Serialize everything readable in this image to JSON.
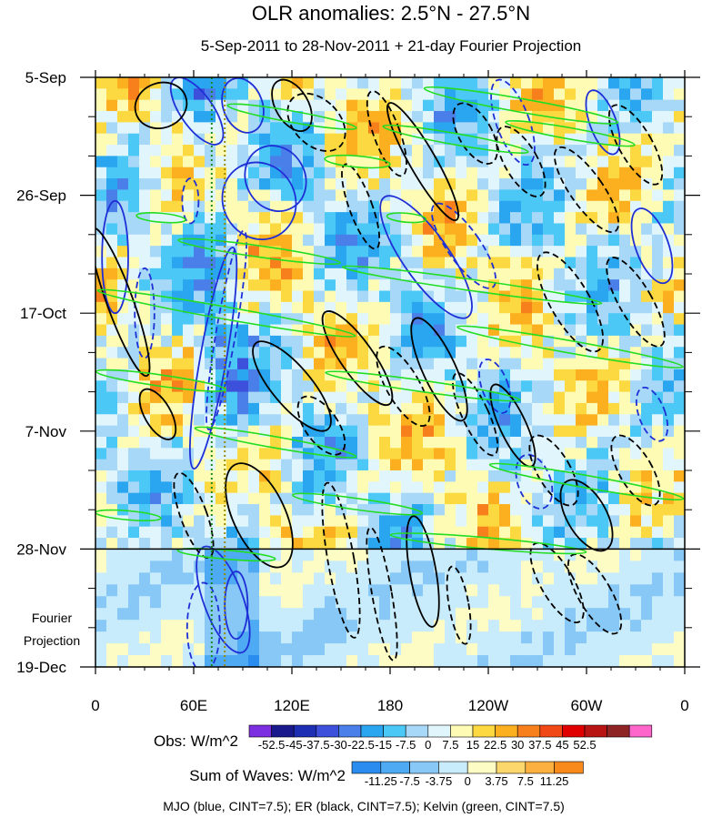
{
  "chart_data": {
    "type": "heatmap",
    "title": "OLR anomalies: 2.5°N - 27.5°N",
    "subtitle": "5-Sep-2011 to 28-Nov-2011 + 21-day Fourier Projection",
    "x_ticks": [
      {
        "lon": 0,
        "label": "0"
      },
      {
        "lon": 60,
        "label": "60E"
      },
      {
        "lon": 120,
        "label": "120E"
      },
      {
        "lon": 180,
        "label": "180"
      },
      {
        "lon": 240,
        "label": "120W"
      },
      {
        "lon": 300,
        "label": "60W"
      },
      {
        "lon": 360,
        "label": "0"
      }
    ],
    "y_ticks": [
      {
        "day": 0,
        "label": "5-Sep"
      },
      {
        "day": 21,
        "label": "26-Sep"
      },
      {
        "day": 42,
        "label": "17-Oct"
      },
      {
        "day": 63,
        "label": "7-Nov"
      },
      {
        "day": 84,
        "label": "28-Nov"
      },
      {
        "day": 105,
        "label": "19-Dec"
      }
    ],
    "xlim": [
      0,
      360
    ],
    "ylim_days": [
      0,
      105
    ],
    "observation_end_day": 84,
    "projection_label": [
      "Fourier",
      "Projection"
    ],
    "dotted_reference_lons": [
      71,
      79
    ],
    "obs_colorbar": {
      "label": "Obs: W/m^2",
      "ticks": [
        "-52.5",
        "-45",
        "-37.5",
        "-30",
        "-22.5",
        "-15",
        "-7.5",
        "0",
        "7.5",
        "15",
        "22.5",
        "30",
        "37.5",
        "45",
        "52.5"
      ],
      "colors": [
        "#7b2fe0",
        "#1a1a8c",
        "#1f2fb4",
        "#3c50dc",
        "#4a7ee8",
        "#2aa6f0",
        "#4cc8f6",
        "#a8d8f8",
        "#e0f6fc",
        "#fdfbb4",
        "#fcd940",
        "#fcb020",
        "#f8801c",
        "#f04816",
        "#e00000",
        "#b81414",
        "#8e2424",
        "#ff66cc"
      ]
    },
    "waves_colorbar": {
      "label": "Sum of Waves: W/m^2",
      "ticks": [
        "-11.25",
        "-7.5",
        "-3.75",
        "0",
        "3.75",
        "7.5",
        "11.25"
      ],
      "colors": [
        "#2b8cf0",
        "#4eaaf2",
        "#88c8f6",
        "#c8ecfc",
        "#fcfcc4",
        "#fcd86c",
        "#fcb040",
        "#f88a1c"
      ]
    },
    "footer": "MJO (blue, CINT=7.5); ER (black, CINT=7.5); Kelvin (green, CINT=7.5)",
    "series": [
      {
        "name": "MJO",
        "color": "blue",
        "cint": 7.5
      },
      {
        "name": "ER",
        "color": "black",
        "cint": 7.5
      },
      {
        "name": "Kelvin",
        "color": "green",
        "cint": 7.5
      }
    ],
    "mjo_contours": [
      {
        "lon": 62,
        "day": 6,
        "rlon": 10,
        "rday": 7,
        "ang": -35,
        "dash": false
      },
      {
        "lon": 58,
        "day": 22,
        "rlon": 5,
        "rday": 4,
        "ang": 0,
        "dash": true
      },
      {
        "lon": 100,
        "day": 22,
        "rlon": 22,
        "rday": 7,
        "ang": -30,
        "dash": false
      },
      {
        "lon": 110,
        "day": 18,
        "rlon": 18,
        "rday": 6,
        "ang": -30,
        "dash": false
      },
      {
        "lon": 90,
        "day": 5,
        "rlon": 12,
        "rday": 5,
        "ang": -20,
        "dash": false
      },
      {
        "lon": 12,
        "day": 32,
        "rlon": 8,
        "rday": 10,
        "ang": 0,
        "dash": false
      },
      {
        "lon": 30,
        "day": 42,
        "rlon": 6,
        "rday": 8,
        "ang": 0,
        "dash": true
      },
      {
        "lon": 72,
        "day": 50,
        "rlon": 8,
        "rday": 20,
        "ang": 10,
        "dash": false
      },
      {
        "lon": 80,
        "day": 45,
        "rlon": 6,
        "rday": 18,
        "ang": 10,
        "dash": true
      },
      {
        "lon": 202,
        "day": 32,
        "rlon": 14,
        "rday": 13,
        "ang": -35,
        "dash": false
      },
      {
        "lon": 225,
        "day": 30,
        "rlon": 10,
        "rday": 9,
        "ang": -35,
        "dash": true
      },
      {
        "lon": 255,
        "day": 8,
        "rlon": 10,
        "rday": 8,
        "ang": -20,
        "dash": true
      },
      {
        "lon": 310,
        "day": 8,
        "rlon": 8,
        "rday": 6,
        "ang": -20,
        "dash": false
      },
      {
        "lon": 340,
        "day": 30,
        "rlon": 10,
        "rday": 7,
        "ang": -20,
        "dash": false
      },
      {
        "lon": 244,
        "day": 55,
        "rlon": 8,
        "rday": 5,
        "ang": -20,
        "dash": true
      },
      {
        "lon": 268,
        "day": 72,
        "rlon": 10,
        "rday": 5,
        "ang": -20,
        "dash": true
      },
      {
        "lon": 340,
        "day": 60,
        "rlon": 8,
        "rday": 5,
        "ang": -20,
        "dash": true
      },
      {
        "lon": 78,
        "day": 93,
        "rlon": 12,
        "rday": 10,
        "ang": -20,
        "dash": false
      },
      {
        "lon": 66,
        "day": 98,
        "rlon": 10,
        "rday": 8,
        "ang": 0,
        "dash": true
      },
      {
        "lon": 86,
        "day": 94,
        "rlon": 7,
        "rday": 6,
        "ang": 0,
        "dash": false
      }
    ],
    "er_contours": [
      {
        "lon": 40,
        "day": 5,
        "rlon": 16,
        "rday": 4,
        "ang": -20,
        "dash": false
      },
      {
        "lon": 135,
        "day": 8,
        "rlon": 14,
        "rday": 6,
        "ang": -45,
        "dash": true
      },
      {
        "lon": 120,
        "day": 5,
        "rlon": 10,
        "rday": 5,
        "ang": -30,
        "dash": false
      },
      {
        "lon": 200,
        "day": 15,
        "rlon": 8,
        "rday": 12,
        "ang": -30,
        "dash": false
      },
      {
        "lon": 178,
        "day": 10,
        "rlon": 8,
        "rday": 8,
        "ang": -20,
        "dash": true
      },
      {
        "lon": 162,
        "day": 23,
        "rlon": 7,
        "rday": 8,
        "ang": -20,
        "dash": true
      },
      {
        "lon": 232,
        "day": 10,
        "rlon": 10,
        "rday": 6,
        "ang": -30,
        "dash": true
      },
      {
        "lon": 260,
        "day": 15,
        "rlon": 10,
        "rday": 7,
        "ang": -30,
        "dash": true
      },
      {
        "lon": 300,
        "day": 20,
        "rlon": 10,
        "rday": 9,
        "ang": -35,
        "dash": true
      },
      {
        "lon": 330,
        "day": 12,
        "rlon": 10,
        "rday": 8,
        "ang": -30,
        "dash": true
      },
      {
        "lon": 290,
        "day": 40,
        "rlon": 12,
        "rday": 10,
        "ang": -30,
        "dash": true
      },
      {
        "lon": 330,
        "day": 40,
        "rlon": 10,
        "rday": 9,
        "ang": -30,
        "dash": true
      },
      {
        "lon": 15,
        "day": 40,
        "rlon": 8,
        "rday": 14,
        "ang": -20,
        "dash": false
      },
      {
        "lon": 38,
        "day": 60,
        "rlon": 8,
        "rday": 5,
        "ang": -30,
        "dash": false
      },
      {
        "lon": 120,
        "day": 55,
        "rlon": 12,
        "rday": 10,
        "ang": -40,
        "dash": false
      },
      {
        "lon": 138,
        "day": 62,
        "rlon": 10,
        "rday": 6,
        "ang": -35,
        "dash": true
      },
      {
        "lon": 160,
        "day": 50,
        "rlon": 10,
        "rday": 10,
        "ang": -35,
        "dash": false
      },
      {
        "lon": 188,
        "day": 55,
        "rlon": 10,
        "rday": 8,
        "ang": -30,
        "dash": true
      },
      {
        "lon": 210,
        "day": 52,
        "rlon": 10,
        "rday": 10,
        "ang": -25,
        "dash": false
      },
      {
        "lon": 232,
        "day": 60,
        "rlon": 8,
        "rday": 8,
        "ang": -25,
        "dash": true
      },
      {
        "lon": 255,
        "day": 62,
        "rlon": 8,
        "rday": 8,
        "ang": -25,
        "dash": false
      },
      {
        "lon": 280,
        "day": 70,
        "rlon": 10,
        "rday": 7,
        "ang": -30,
        "dash": true
      },
      {
        "lon": 300,
        "day": 78,
        "rlon": 12,
        "rday": 7,
        "ang": -30,
        "dash": false
      },
      {
        "lon": 330,
        "day": 70,
        "rlon": 10,
        "rday": 7,
        "ang": -30,
        "dash": true
      },
      {
        "lon": 100,
        "day": 78,
        "rlon": 16,
        "rday": 10,
        "ang": -25,
        "dash": false
      },
      {
        "lon": 60,
        "day": 78,
        "rlon": 8,
        "rday": 8,
        "ang": -20,
        "dash": true
      },
      {
        "lon": 150,
        "day": 86,
        "rlon": 8,
        "rday": 14,
        "ang": -10,
        "dash": true
      },
      {
        "lon": 175,
        "day": 92,
        "rlon": 6,
        "rday": 12,
        "ang": -10,
        "dash": true
      },
      {
        "lon": 200,
        "day": 88,
        "rlon": 8,
        "rday": 10,
        "ang": -10,
        "dash": false
      },
      {
        "lon": 222,
        "day": 94,
        "rlon": 6,
        "rday": 7,
        "ang": -10,
        "dash": true
      },
      {
        "lon": 282,
        "day": 90,
        "rlon": 10,
        "rday": 8,
        "ang": -30,
        "dash": true
      },
      {
        "lon": 305,
        "day": 92,
        "rlon": 10,
        "rday": 8,
        "ang": -30,
        "dash": true
      }
    ],
    "kelvin_contours": [
      {
        "lon": 260,
        "day": 5,
        "rlon": 60,
        "rday": 1.2,
        "ang": 10,
        "dash": false
      },
      {
        "lon": 220,
        "day": 11,
        "rlon": 45,
        "rday": 1.0,
        "ang": 10,
        "dash": false
      },
      {
        "lon": 120,
        "day": 7,
        "rlon": 40,
        "rday": 1.0,
        "ang": 10,
        "dash": false
      },
      {
        "lon": 160,
        "day": 15,
        "rlon": 20,
        "rday": 1.0,
        "ang": 5,
        "dash": false
      },
      {
        "lon": 290,
        "day": 10,
        "rlon": 40,
        "rday": 1.0,
        "ang": 10,
        "dash": false
      },
      {
        "lon": 40,
        "day": 25,
        "rlon": 15,
        "rday": 0.8,
        "ang": 5,
        "dash": false
      },
      {
        "lon": 190,
        "day": 25,
        "rlon": 12,
        "rday": 0.8,
        "ang": 5,
        "dash": false
      },
      {
        "lon": 100,
        "day": 31,
        "rlon": 50,
        "rday": 1.0,
        "ang": 8,
        "dash": false
      },
      {
        "lon": 230,
        "day": 37,
        "rlon": 80,
        "rday": 1.0,
        "ang": 8,
        "dash": false
      },
      {
        "lon": 80,
        "day": 42,
        "rlon": 80,
        "rday": 1.1,
        "ang": 10,
        "dash": false
      },
      {
        "lon": 290,
        "day": 48,
        "rlon": 70,
        "rday": 1.1,
        "ang": 10,
        "dash": false
      },
      {
        "lon": 40,
        "day": 54,
        "rlon": 40,
        "rday": 1.0,
        "ang": 8,
        "dash": false
      },
      {
        "lon": 200,
        "day": 55,
        "rlon": 60,
        "rday": 1.0,
        "ang": 8,
        "dash": false
      },
      {
        "lon": 110,
        "day": 65,
        "rlon": 50,
        "rday": 1.0,
        "ang": 10,
        "dash": false
      },
      {
        "lon": 300,
        "day": 72,
        "rlon": 60,
        "rday": 1.1,
        "ang": 10,
        "dash": false
      },
      {
        "lon": 20,
        "day": 78,
        "rlon": 20,
        "rday": 0.8,
        "ang": 5,
        "dash": false
      },
      {
        "lon": 160,
        "day": 76,
        "rlon": 40,
        "rday": 1.0,
        "ang": 8,
        "dash": false
      },
      {
        "lon": 240,
        "day": 83,
        "rlon": 60,
        "rday": 1.0,
        "ang": 5,
        "dash": false
      },
      {
        "lon": 80,
        "day": 85,
        "rlon": 30,
        "rday": 0.8,
        "ang": 5,
        "dash": false
      }
    ]
  }
}
